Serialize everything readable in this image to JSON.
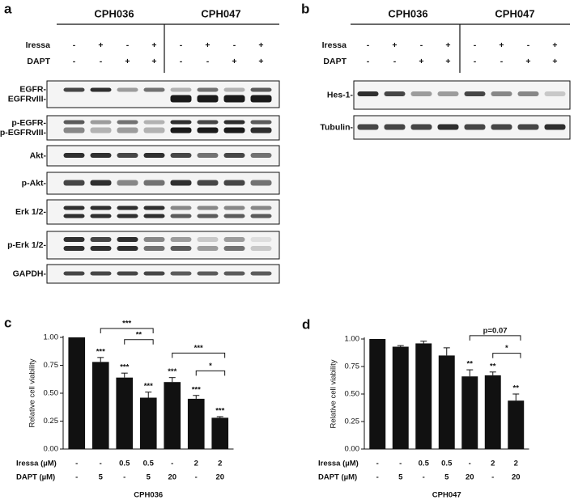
{
  "panels": {
    "a": {
      "label": "a",
      "groups": [
        "CPH036",
        "CPH047"
      ],
      "treatments": [
        {
          "name": "Iressa",
          "signs": [
            "-",
            "+",
            "-",
            "+",
            "-",
            "+",
            "-",
            "+"
          ]
        },
        {
          "name": "DAPT",
          "signs": [
            "-",
            "-",
            "+",
            "+",
            "-",
            "-",
            "+",
            "+"
          ]
        }
      ],
      "blots": [
        {
          "label": [
            "EGFR-",
            "EGFRvIII-"
          ]
        },
        {
          "label": [
            "p-EGFR-",
            "p-EGFRvIII-"
          ]
        },
        {
          "label": [
            "Akt-"
          ]
        },
        {
          "label": [
            "p-Akt-"
          ]
        },
        {
          "label": [
            "Erk 1/2-"
          ]
        },
        {
          "label": [
            "p-Erk 1/2-"
          ]
        },
        {
          "label": [
            "GAPDH-"
          ]
        }
      ]
    },
    "b": {
      "label": "b",
      "groups": [
        "CPH036",
        "CPH047"
      ],
      "treatments": [
        {
          "name": "Iressa",
          "signs": [
            "-",
            "+",
            "-",
            "+",
            "-",
            "+",
            "-",
            "+"
          ]
        },
        {
          "name": "DAPT",
          "signs": [
            "-",
            "-",
            "+",
            "+",
            "-",
            "-",
            "+",
            "+"
          ]
        }
      ],
      "blots": [
        {
          "label": [
            "Hes-1-"
          ]
        },
        {
          "label": [
            "Tubulin-"
          ]
        }
      ]
    }
  },
  "chart_data": [
    {
      "type": "bar",
      "panel_label": "c",
      "ylabel": "Relative cell viability",
      "xlabel": "CPH036",
      "x_label_rows": [
        {
          "name": "Iressa (µM)",
          "labels": [
            "-",
            "-",
            "0.5",
            "0.5",
            "-",
            "2",
            "2"
          ]
        },
        {
          "name": "DAPT (µM)",
          "labels": [
            "-",
            "5",
            "-",
            "5",
            "20",
            "-",
            "20"
          ]
        }
      ],
      "values": [
        1.0,
        0.78,
        0.64,
        0.46,
        0.6,
        0.45,
        0.28
      ],
      "errors": [
        0,
        0.04,
        0.04,
        0.05,
        0.04,
        0.03,
        0.01
      ],
      "significance": [
        null,
        "***",
        "***",
        "***",
        "***",
        "***",
        "***"
      ],
      "comparisons": [
        {
          "between": [
            1,
            3
          ],
          "label": "***"
        },
        {
          "between": [
            2,
            3
          ],
          "label": "**"
        },
        {
          "between": [
            4,
            6
          ],
          "label": "***"
        },
        {
          "between": [
            5,
            6
          ],
          "label": "*"
        }
      ],
      "color": "#111111",
      "ylim": [
        0,
        1
      ],
      "yticks": [
        {
          "value": 0,
          "label": "0.00"
        },
        {
          "value": 0.25,
          "label": "0.25"
        },
        {
          "value": 0.5,
          "label": "0.50"
        },
        {
          "value": 0.75,
          "label": "0.75"
        },
        {
          "value": 1,
          "label": "1.00"
        }
      ]
    },
    {
      "type": "bar",
      "panel_label": "d",
      "ylabel": "Relative cell viability",
      "xlabel": "CPH047",
      "x_label_rows": [
        {
          "name": "Iressa (µM)",
          "labels": [
            "-",
            "-",
            "0.5",
            "0.5",
            "-",
            "2",
            "2"
          ]
        },
        {
          "name": "DAPT (µM)",
          "labels": [
            "-",
            "5",
            "-",
            "5",
            "20",
            "-",
            "20"
          ]
        }
      ],
      "values": [
        1.0,
        0.93,
        0.96,
        0.85,
        0.66,
        0.67,
        0.44
      ],
      "errors": [
        0,
        0.01,
        0.02,
        0.07,
        0.06,
        0.03,
        0.06
      ],
      "significance": [
        null,
        null,
        null,
        null,
        "**",
        "**",
        "**"
      ],
      "comparisons": [
        {
          "between": [
            4,
            6
          ],
          "label": "p=0.07"
        },
        {
          "between": [
            5,
            6
          ],
          "label": "*"
        }
      ],
      "color": "#111111",
      "ylim": [
        0,
        1
      ],
      "yticks": [
        {
          "value": 0,
          "label": "0.00"
        },
        {
          "value": 0.25,
          "label": "0.25"
        },
        {
          "value": 0.5,
          "label": "0.50"
        },
        {
          "value": 0.75,
          "label": "0.75"
        },
        {
          "value": 1,
          "label": "1.00"
        }
      ]
    }
  ]
}
